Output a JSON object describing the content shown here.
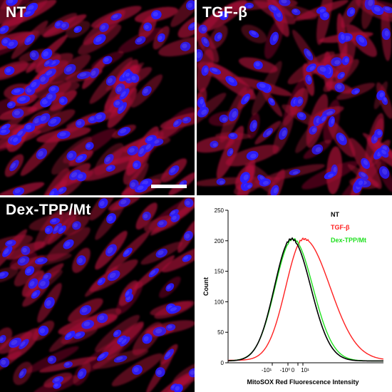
{
  "panels": [
    {
      "label": "NT"
    },
    {
      "label": "TGF-β"
    },
    {
      "label": "Dex-TPP/Mt"
    }
  ],
  "colors": {
    "nucleus": "#2a1cff",
    "cytoplasm": "#b0103a",
    "nt_line": "#000000",
    "tgf_line": "#ff2020",
    "dex_line": "#20e020"
  },
  "chart_data": {
    "type": "line",
    "title": "",
    "xlabel": "MitoSOX Red Fluorescence Intensity",
    "ylabel": "Count",
    "ylim": [
      0,
      250
    ],
    "yticks": [
      0,
      50,
      100,
      150,
      200,
      250
    ],
    "xtick_labels": [
      "-10¹",
      "-10⁰",
      "0",
      "10¹"
    ],
    "x_scale": "biexponential",
    "legend_position": "top-right",
    "series": [
      {
        "name": "NT",
        "color": "#000000",
        "peak_count": 203
      },
      {
        "name": "TGF-β",
        "color": "#ff2020",
        "peak_count": 203
      },
      {
        "name": "Dex-TPP/Mt",
        "color": "#20e020",
        "peak_count": 203
      }
    ]
  }
}
